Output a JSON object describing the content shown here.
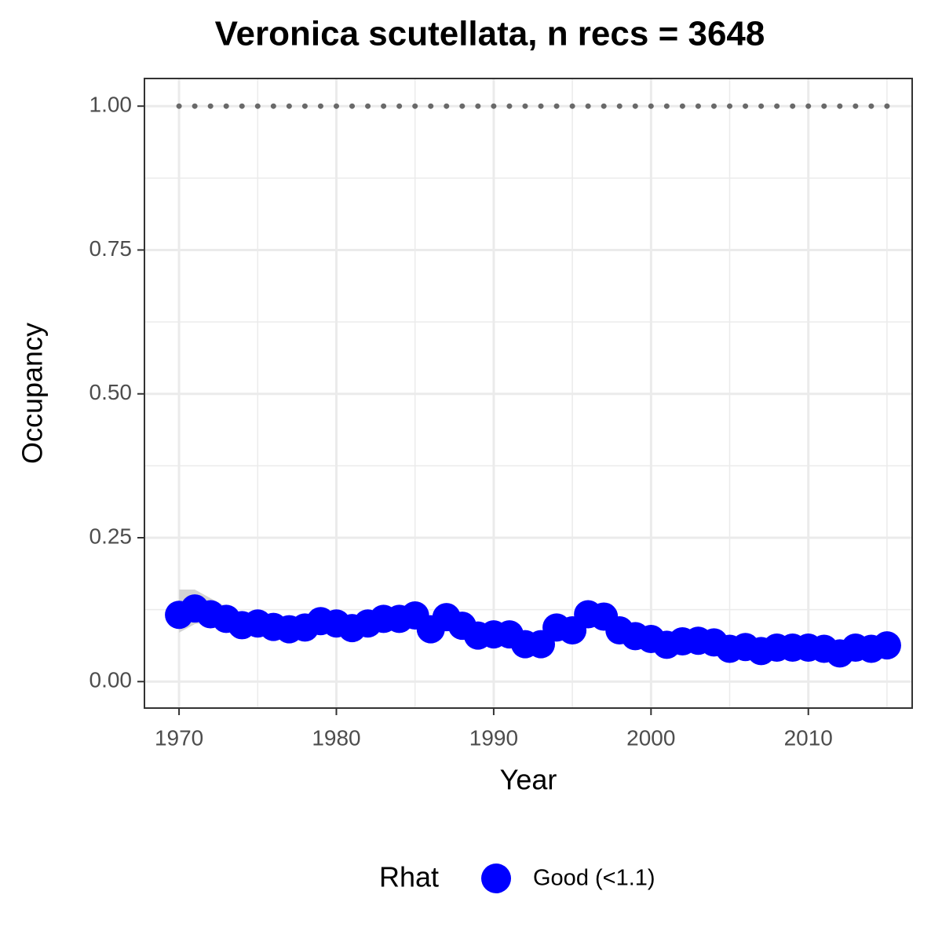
{
  "chart_data": {
    "type": "line",
    "title": "Veronica scutellata, n recs = 3648",
    "x_label": "Year",
    "y_label": "Occupancy",
    "legend_title": "Rhat",
    "legend_position": "bottom",
    "x": [
      1970,
      1971,
      1972,
      1973,
      1974,
      1975,
      1976,
      1977,
      1978,
      1979,
      1980,
      1981,
      1982,
      1983,
      1984,
      1985,
      1986,
      1987,
      1988,
      1989,
      1990,
      1991,
      1992,
      1993,
      1994,
      1995,
      1996,
      1997,
      1998,
      1999,
      2000,
      2001,
      2002,
      2003,
      2004,
      2005,
      2006,
      2007,
      2008,
      2009,
      2010,
      2011,
      2012,
      2013,
      2014,
      2015
    ],
    "series": [
      {
        "name": "Good (<1.1)",
        "color": "#0000ff",
        "values": [
          0.116,
          0.127,
          0.117,
          0.109,
          0.098,
          0.101,
          0.095,
          0.091,
          0.094,
          0.105,
          0.101,
          0.093,
          0.101,
          0.109,
          0.109,
          0.115,
          0.091,
          0.112,
          0.097,
          0.08,
          0.082,
          0.082,
          0.065,
          0.065,
          0.094,
          0.089,
          0.117,
          0.113,
          0.089,
          0.079,
          0.074,
          0.064,
          0.07,
          0.071,
          0.068,
          0.057,
          0.06,
          0.053,
          0.059,
          0.059,
          0.059,
          0.057,
          0.049,
          0.059,
          0.057,
          0.063
        ],
        "lower": [
          0.085,
          0.1,
          0.103,
          0.1,
          0.092,
          0.096,
          0.091,
          0.088,
          0.091,
          0.101,
          0.098,
          0.09,
          0.098,
          0.106,
          0.106,
          0.111,
          0.088,
          0.109,
          0.094,
          0.077,
          0.079,
          0.079,
          0.062,
          0.062,
          0.091,
          0.086,
          0.113,
          0.11,
          0.086,
          0.076,
          0.071,
          0.061,
          0.067,
          0.068,
          0.065,
          0.054,
          0.057,
          0.05,
          0.056,
          0.056,
          0.056,
          0.054,
          0.046,
          0.056,
          0.054,
          0.06
        ],
        "upper": [
          0.16,
          0.16,
          0.145,
          0.13,
          0.118,
          0.112,
          0.104,
          0.098,
          0.1,
          0.11,
          0.106,
          0.098,
          0.105,
          0.113,
          0.113,
          0.119,
          0.095,
          0.116,
          0.101,
          0.084,
          0.086,
          0.086,
          0.069,
          0.069,
          0.098,
          0.093,
          0.122,
          0.117,
          0.093,
          0.083,
          0.078,
          0.068,
          0.074,
          0.075,
          0.072,
          0.061,
          0.064,
          0.057,
          0.063,
          0.063,
          0.063,
          0.061,
          0.053,
          0.063,
          0.061,
          0.067
        ],
        "band_color": "#d3d3d3"
      }
    ],
    "reference_line": {
      "value": 1,
      "color": "#696969"
    },
    "xlim": [
      1967.8,
      2016.6
    ],
    "ylim": [
      -0.046,
      1.048
    ],
    "xticks": [
      1970,
      1980,
      1990,
      2000,
      2010
    ],
    "yticks": [
      {
        "value": 0,
        "label": "0.00"
      },
      {
        "value": 0.25,
        "label": "0.25"
      },
      {
        "value": 0.5,
        "label": "0.50"
      },
      {
        "value": 0.75,
        "label": "0.75"
      },
      {
        "value": 1,
        "label": "1.00"
      }
    ],
    "x_minor_grid": [
      1975,
      1985,
      1995,
      2005,
      2015
    ],
    "y_minor_grid": [
      0.125,
      0.375,
      0.625,
      0.875
    ],
    "grid": true
  }
}
